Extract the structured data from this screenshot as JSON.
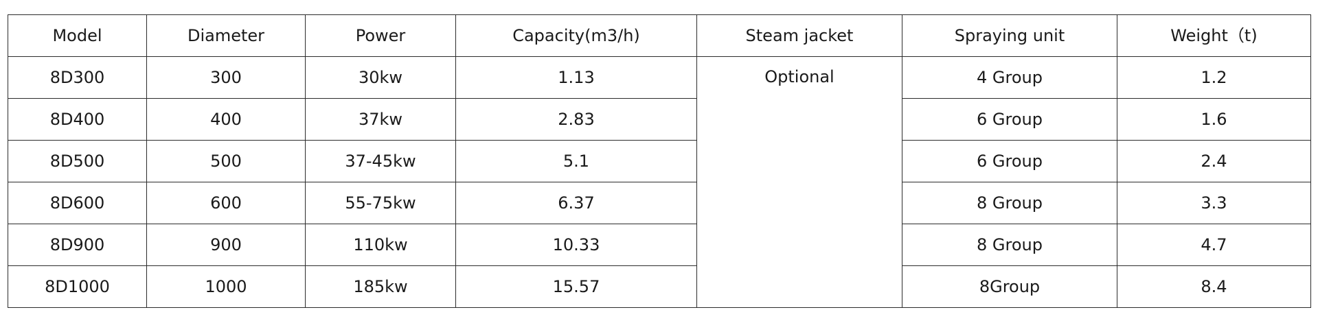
{
  "table": {
    "headers": [
      "Model",
      "Diameter",
      "Power",
      "Capacity(m3/h)",
      "Steam jacket",
      "Spraying unit",
      "Weight（t)"
    ],
    "steam_jacket": "Optional",
    "rows": [
      {
        "model": "8D300",
        "diameter": "300",
        "power": "30kw",
        "capacity": "1.13",
        "spraying": "4 Group",
        "weight": "1.2"
      },
      {
        "model": "8D400",
        "diameter": "400",
        "power": "37kw",
        "capacity": "2.83",
        "spraying": "6 Group",
        "weight": "1.6"
      },
      {
        "model": "8D500",
        "diameter": "500",
        "power": "37-45kw",
        "capacity": "5.1",
        "spraying": "6 Group",
        "weight": "2.4"
      },
      {
        "model": "8D600",
        "diameter": "600",
        "power": "55-75kw",
        "capacity": "6.37",
        "spraying": "8 Group",
        "weight": "3.3"
      },
      {
        "model": "8D900",
        "diameter": "900",
        "power": "110kw",
        "capacity": "10.33",
        "spraying": "8 Group",
        "weight": "4.7"
      },
      {
        "model": "8D1000",
        "diameter": "1000",
        "power": "185kw",
        "capacity": "15.57",
        "spraying": "8Group",
        "weight": "8.4"
      }
    ]
  }
}
